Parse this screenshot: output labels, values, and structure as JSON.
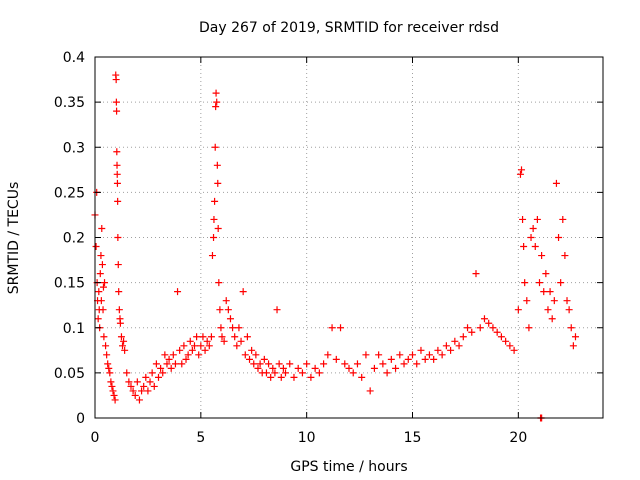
{
  "chart_data": {
    "type": "scatter",
    "title": "Day 267 of 2019, SRMTID for receiver rdsd",
    "xlabel": "GPS time / hours",
    "ylabel": "SRMTID / TECUs",
    "xlim": [
      0,
      24
    ],
    "ylim": [
      0,
      0.4
    ],
    "grid": true,
    "marker": "+",
    "x_ticks": [
      0,
      5,
      10,
      15,
      20
    ],
    "x_tick_labels": [
      "0",
      "5",
      "10",
      "15",
      "20"
    ],
    "y_ticks": [
      0,
      0.05,
      0.1,
      0.15,
      0.2,
      0.25,
      0.3,
      0.35,
      0.4
    ],
    "y_tick_labels": [
      "0",
      "0.05",
      "0.1",
      "0.15",
      "0.2",
      "0.25",
      "0.3",
      "0.35",
      "0.4"
    ],
    "series": [
      {
        "name": "SRMTID",
        "color": "#ff0000",
        "points": [
          [
            0.0,
            0.225
          ],
          [
            0.05,
            0.19
          ],
          [
            0.08,
            0.25
          ],
          [
            0.1,
            0.15
          ],
          [
            0.12,
            0.13
          ],
          [
            0.15,
            0.11
          ],
          [
            0.18,
            0.14
          ],
          [
            0.2,
            0.12
          ],
          [
            0.22,
            0.1
          ],
          [
            0.25,
            0.16
          ],
          [
            0.28,
            0.18
          ],
          [
            0.3,
            0.13
          ],
          [
            0.32,
            0.21
          ],
          [
            0.35,
            0.17
          ],
          [
            0.38,
            0.12
          ],
          [
            0.4,
            0.145
          ],
          [
            0.42,
            0.09
          ],
          [
            0.45,
            0.15
          ],
          [
            0.5,
            0.08
          ],
          [
            0.55,
            0.07
          ],
          [
            0.6,
            0.06
          ],
          [
            0.65,
            0.055
          ],
          [
            0.7,
            0.05
          ],
          [
            0.75,
            0.04
          ],
          [
            0.8,
            0.035
          ],
          [
            0.85,
            0.03
          ],
          [
            0.9,
            0.025
          ],
          [
            0.95,
            0.02
          ],
          [
            0.98,
            0.38
          ],
          [
            1.0,
            0.375
          ],
          [
            1.01,
            0.35
          ],
          [
            1.02,
            0.34
          ],
          [
            1.03,
            0.295
          ],
          [
            1.04,
            0.28
          ],
          [
            1.05,
            0.27
          ],
          [
            1.06,
            0.26
          ],
          [
            1.07,
            0.24
          ],
          [
            1.08,
            0.2
          ],
          [
            1.1,
            0.17
          ],
          [
            1.12,
            0.14
          ],
          [
            1.15,
            0.12
          ],
          [
            1.18,
            0.11
          ],
          [
            1.2,
            0.105
          ],
          [
            1.25,
            0.09
          ],
          [
            1.3,
            0.08
          ],
          [
            1.35,
            0.085
          ],
          [
            1.4,
            0.075
          ],
          [
            1.5,
            0.05
          ],
          [
            1.6,
            0.04
          ],
          [
            1.7,
            0.035
          ],
          [
            1.8,
            0.03
          ],
          [
            1.9,
            0.025
          ],
          [
            2.0,
            0.04
          ],
          [
            2.1,
            0.02
          ],
          [
            2.2,
            0.03
          ],
          [
            2.3,
            0.035
          ],
          [
            2.4,
            0.045
          ],
          [
            2.5,
            0.03
          ],
          [
            2.6,
            0.04
          ],
          [
            2.7,
            0.05
          ],
          [
            2.8,
            0.035
          ],
          [
            2.9,
            0.06
          ],
          [
            3.0,
            0.045
          ],
          [
            3.1,
            0.055
          ],
          [
            3.2,
            0.05
          ],
          [
            3.3,
            0.07
          ],
          [
            3.4,
            0.06
          ],
          [
            3.5,
            0.065
          ],
          [
            3.6,
            0.055
          ],
          [
            3.7,
            0.07
          ],
          [
            3.8,
            0.06
          ],
          [
            3.9,
            0.14
          ],
          [
            4.0,
            0.075
          ],
          [
            4.1,
            0.06
          ],
          [
            4.2,
            0.08
          ],
          [
            4.3,
            0.065
          ],
          [
            4.4,
            0.07
          ],
          [
            4.5,
            0.085
          ],
          [
            4.6,
            0.075
          ],
          [
            4.7,
            0.08
          ],
          [
            4.8,
            0.09
          ],
          [
            4.9,
            0.07
          ],
          [
            5.0,
            0.08
          ],
          [
            5.1,
            0.09
          ],
          [
            5.2,
            0.075
          ],
          [
            5.3,
            0.085
          ],
          [
            5.4,
            0.08
          ],
          [
            5.5,
            0.09
          ],
          [
            5.55,
            0.18
          ],
          [
            5.6,
            0.2
          ],
          [
            5.62,
            0.22
          ],
          [
            5.65,
            0.24
          ],
          [
            5.68,
            0.3
          ],
          [
            5.7,
            0.345
          ],
          [
            5.72,
            0.36
          ],
          [
            5.75,
            0.35
          ],
          [
            5.78,
            0.28
          ],
          [
            5.8,
            0.26
          ],
          [
            5.82,
            0.21
          ],
          [
            5.85,
            0.15
          ],
          [
            5.9,
            0.12
          ],
          [
            5.95,
            0.1
          ],
          [
            6.0,
            0.09
          ],
          [
            6.1,
            0.085
          ],
          [
            6.2,
            0.13
          ],
          [
            6.3,
            0.12
          ],
          [
            6.4,
            0.11
          ],
          [
            6.5,
            0.1
          ],
          [
            6.6,
            0.09
          ],
          [
            6.7,
            0.08
          ],
          [
            6.8,
            0.1
          ],
          [
            6.9,
            0.085
          ],
          [
            7.0,
            0.14
          ],
          [
            7.1,
            0.07
          ],
          [
            7.2,
            0.09
          ],
          [
            7.3,
            0.065
          ],
          [
            7.4,
            0.075
          ],
          [
            7.5,
            0.06
          ],
          [
            7.6,
            0.07
          ],
          [
            7.7,
            0.055
          ],
          [
            7.8,
            0.06
          ],
          [
            7.9,
            0.05
          ],
          [
            8.0,
            0.065
          ],
          [
            8.1,
            0.05
          ],
          [
            8.2,
            0.06
          ],
          [
            8.3,
            0.045
          ],
          [
            8.4,
            0.055
          ],
          [
            8.5,
            0.05
          ],
          [
            8.6,
            0.12
          ],
          [
            8.7,
            0.06
          ],
          [
            8.8,
            0.045
          ],
          [
            8.9,
            0.055
          ],
          [
            9.0,
            0.05
          ],
          [
            9.2,
            0.06
          ],
          [
            9.4,
            0.045
          ],
          [
            9.6,
            0.055
          ],
          [
            9.8,
            0.05
          ],
          [
            10.0,
            0.06
          ],
          [
            10.2,
            0.045
          ],
          [
            10.4,
            0.055
          ],
          [
            10.6,
            0.05
          ],
          [
            10.8,
            0.06
          ],
          [
            11.0,
            0.07
          ],
          [
            11.2,
            0.1
          ],
          [
            11.4,
            0.065
          ],
          [
            11.6,
            0.1
          ],
          [
            11.8,
            0.06
          ],
          [
            12.0,
            0.055
          ],
          [
            12.2,
            0.05
          ],
          [
            12.4,
            0.06
          ],
          [
            12.6,
            0.045
          ],
          [
            12.8,
            0.07
          ],
          [
            13.0,
            0.03
          ],
          [
            13.2,
            0.055
          ],
          [
            13.4,
            0.07
          ],
          [
            13.6,
            0.06
          ],
          [
            13.8,
            0.05
          ],
          [
            14.0,
            0.065
          ],
          [
            14.2,
            0.055
          ],
          [
            14.4,
            0.07
          ],
          [
            14.6,
            0.06
          ],
          [
            14.8,
            0.065
          ],
          [
            15.0,
            0.07
          ],
          [
            15.2,
            0.06
          ],
          [
            15.4,
            0.075
          ],
          [
            15.6,
            0.065
          ],
          [
            15.8,
            0.07
          ],
          [
            16.0,
            0.065
          ],
          [
            16.2,
            0.075
          ],
          [
            16.4,
            0.07
          ],
          [
            16.6,
            0.08
          ],
          [
            16.8,
            0.075
          ],
          [
            17.0,
            0.085
          ],
          [
            17.2,
            0.08
          ],
          [
            17.4,
            0.09
          ],
          [
            17.6,
            0.1
          ],
          [
            17.8,
            0.095
          ],
          [
            18.0,
            0.16
          ],
          [
            18.2,
            0.1
          ],
          [
            18.4,
            0.11
          ],
          [
            18.6,
            0.105
          ],
          [
            18.8,
            0.1
          ],
          [
            19.0,
            0.095
          ],
          [
            19.2,
            0.09
          ],
          [
            19.4,
            0.085
          ],
          [
            19.6,
            0.08
          ],
          [
            19.8,
            0.075
          ],
          [
            20.0,
            0.12
          ],
          [
            20.1,
            0.27
          ],
          [
            20.15,
            0.275
          ],
          [
            20.2,
            0.22
          ],
          [
            20.25,
            0.19
          ],
          [
            20.3,
            0.15
          ],
          [
            20.4,
            0.13
          ],
          [
            20.5,
            0.1
          ],
          [
            20.6,
            0.2
          ],
          [
            20.7,
            0.21
          ],
          [
            20.8,
            0.19
          ],
          [
            20.9,
            0.22
          ],
          [
            21.0,
            0.15
          ],
          [
            21.1,
            0.18
          ],
          [
            21.2,
            0.14
          ],
          [
            21.3,
            0.16
          ],
          [
            21.4,
            0.12
          ],
          [
            21.5,
            0.14
          ],
          [
            21.6,
            0.11
          ],
          [
            21.7,
            0.13
          ],
          [
            21.8,
            0.26
          ],
          [
            21.9,
            0.2
          ],
          [
            22.0,
            0.15
          ],
          [
            22.1,
            0.22
          ],
          [
            22.2,
            0.18
          ],
          [
            22.3,
            0.13
          ],
          [
            22.4,
            0.12
          ],
          [
            22.5,
            0.1
          ],
          [
            22.6,
            0.08
          ],
          [
            22.7,
            0.09
          ],
          [
            21.05,
            0.0
          ],
          [
            21.1,
            0.0
          ]
        ]
      }
    ]
  }
}
